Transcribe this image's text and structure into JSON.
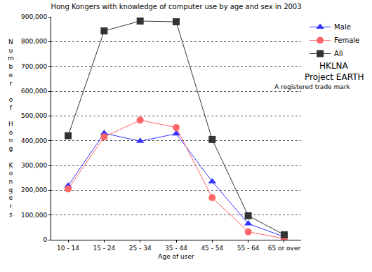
{
  "chart_data": {
    "type": "line",
    "title": "Hong Kongers with knowledge of computer use by age and sex in 2003",
    "x_label": "Age of user",
    "y_label": "Number of Hong Kongers",
    "categories": [
      "10 - 14",
      "15 - 24",
      "25 - 34",
      "35 - 44",
      "45 - 54",
      "55 - 64",
      "65 or over"
    ],
    "series": [
      {
        "name": "Male",
        "color": "#3333ff",
        "marker": "triangle-up",
        "line_style": "solid",
        "values": [
          218000,
          430000,
          398000,
          428000,
          235000,
          65000,
          12000
        ]
      },
      {
        "name": "Female",
        "color": "#ff6666",
        "marker": "circle",
        "line_style": "solid",
        "values": [
          205000,
          415000,
          483000,
          453000,
          170000,
          32000,
          5000
        ]
      },
      {
        "name": "All",
        "color": "#333333",
        "marker": "square",
        "line_style": "solid",
        "values": [
          420000,
          843000,
          883000,
          880000,
          405000,
          97000,
          20000
        ]
      }
    ],
    "ylim": [
      0,
      900000
    ],
    "yticks": [
      0,
      {
        "value": 100000,
        "label": "100,000"
      },
      {
        "value": 200000,
        "label": "200,000"
      },
      {
        "value": 300000,
        "label": "300,000"
      },
      {
        "value": 400000,
        "label": "400,000"
      },
      {
        "value": 500000,
        "label": "500,000"
      },
      {
        "value": 600000,
        "label": "600,000"
      },
      {
        "value": 700000,
        "label": "700,000"
      },
      {
        "value": 800000,
        "label": "800,000"
      },
      {
        "value": 900000,
        "label": "900,000"
      }
    ],
    "grid": true,
    "legend": "right",
    "annotations": [
      "HKLNA",
      "Project EARTH",
      "A registered trade mark"
    ]
  }
}
